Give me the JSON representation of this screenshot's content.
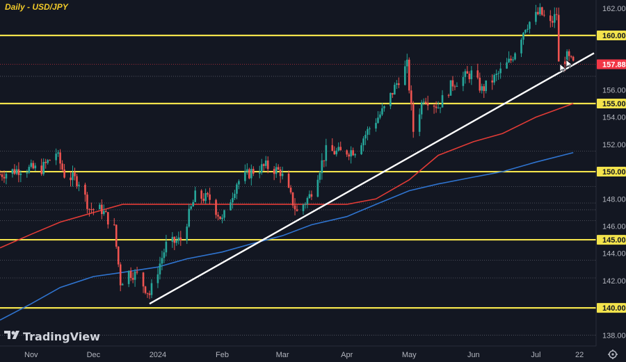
{
  "title": "Daily - USD/JPY",
  "brand": {
    "name": "TradingView",
    "logo_icon": "tradingview-logo-icon"
  },
  "settings_icon": "gear-icon",
  "cursor_icon": "arrow-cursor-icon",
  "colors": {
    "background": "#131722",
    "up": "#26a69a",
    "down": "#ef5350",
    "level": "#f3e34c",
    "ma_fast": "#e23b36",
    "ma_slow": "#2f74d0",
    "trendline": "#ffffff",
    "dotted": "#787b86",
    "current_price_badge": "#f23645"
  },
  "chart_data": {
    "type": "candlestick",
    "title": "Daily - USD/JPY",
    "x_labels": [
      "Nov",
      "Dec",
      "2024",
      "Feb",
      "Mar",
      "Apr",
      "May",
      "Jun",
      "Jul",
      "22"
    ],
    "x_label_dates": [
      "2023-11-01",
      "2023-12-01",
      "2024-01-01",
      "2024-02-01",
      "2024-03-01",
      "2024-04-01",
      "2024-05-01",
      "2024-06-01",
      "2024-07-01",
      "2024-07-22"
    ],
    "xlim": [
      "2023-10-17",
      "2024-07-30"
    ],
    "ylim": [
      137.2,
      162.6
    ],
    "y_ticks": [
      "138.000",
      "142.000",
      "144.000",
      "146.000",
      "148.000",
      "152.000",
      "154.000",
      "156.000",
      "162.000"
    ],
    "y_tick_values": [
      138,
      142,
      144,
      146,
      148,
      152,
      154,
      156,
      162
    ],
    "levels": [
      {
        "label": "160.000",
        "value": 160
      },
      {
        "label": "155.000",
        "value": 155
      },
      {
        "label": "150.000",
        "value": 150
      },
      {
        "label": "145.000",
        "value": 145
      },
      {
        "label": "140.000",
        "value": 140
      }
    ],
    "current_price": {
      "label": "157.881",
      "value": 157.881
    },
    "dotted_levels": [
      157.0,
      151.5,
      148.9,
      147.7,
      147.2,
      146.4,
      143.5,
      142.2,
      138.0
    ],
    "trendline": {
      "start": [
        "2023-12-28",
        140.3
      ],
      "end": [
        "2024-07-29",
        158.7
      ]
    },
    "series": [
      {
        "id": "sma-fast",
        "points": [
          [
            "2023-10-17",
            144.4
          ],
          [
            "2023-11-01",
            145.4
          ],
          [
            "2023-11-15",
            146.3
          ],
          [
            "2023-12-01",
            147.0
          ],
          [
            "2023-12-15",
            147.6
          ],
          [
            "2024-01-01",
            147.6
          ],
          [
            "2024-01-15",
            147.6
          ],
          [
            "2024-02-01",
            147.6
          ],
          [
            "2024-02-15",
            147.6
          ],
          [
            "2024-03-01",
            147.6
          ],
          [
            "2024-03-15",
            147.6
          ],
          [
            "2024-04-01",
            147.6
          ],
          [
            "2024-04-15",
            148.0
          ],
          [
            "2024-05-01",
            149.4
          ],
          [
            "2024-05-15",
            151.2
          ],
          [
            "2024-06-01",
            152.2
          ],
          [
            "2024-06-15",
            152.8
          ],
          [
            "2024-07-01",
            154.0
          ],
          [
            "2024-07-19",
            155.0
          ]
        ]
      },
      {
        "id": "sma-slow",
        "points": [
          [
            "2023-10-17",
            139.1
          ],
          [
            "2023-11-01",
            140.3
          ],
          [
            "2023-11-15",
            141.5
          ],
          [
            "2023-12-01",
            142.3
          ],
          [
            "2023-12-15",
            142.6
          ],
          [
            "2024-01-01",
            143.0
          ],
          [
            "2024-01-15",
            143.6
          ],
          [
            "2024-02-01",
            144.1
          ],
          [
            "2024-02-15",
            144.7
          ],
          [
            "2024-03-01",
            145.3
          ],
          [
            "2024-03-15",
            146.1
          ],
          [
            "2024-04-01",
            146.7
          ],
          [
            "2024-04-15",
            147.6
          ],
          [
            "2024-05-01",
            148.6
          ],
          [
            "2024-05-15",
            149.1
          ],
          [
            "2024-06-01",
            149.6
          ],
          [
            "2024-06-15",
            150.0
          ],
          [
            "2024-07-01",
            150.7
          ],
          [
            "2024-07-19",
            151.4
          ]
        ]
      }
    ],
    "candles_anchor": [
      [
        "2023-10-17",
        149.8
      ],
      [
        "2023-10-27",
        150.2
      ],
      [
        "2023-11-06",
        150.2
      ],
      [
        "2023-11-13",
        151.4
      ],
      [
        "2023-11-17",
        149.8
      ],
      [
        "2023-11-24",
        149.3
      ],
      [
        "2023-11-29",
        147.3
      ],
      [
        "2023-12-05",
        147.2
      ],
      [
        "2023-12-11",
        145.8
      ],
      [
        "2023-12-14",
        141.9
      ],
      [
        "2023-12-18",
        142.6
      ],
      [
        "2023-12-22",
        142.4
      ],
      [
        "2023-12-28",
        141.0
      ],
      [
        "2024-01-05",
        144.6
      ],
      [
        "2024-01-12",
        145.0
      ],
      [
        "2024-01-19",
        148.2
      ],
      [
        "2024-01-26",
        148.0
      ],
      [
        "2024-02-01",
        146.4
      ],
      [
        "2024-02-08",
        149.2
      ],
      [
        "2024-02-15",
        150.0
      ],
      [
        "2024-02-22",
        150.4
      ],
      [
        "2024-02-29",
        150.0
      ],
      [
        "2024-03-08",
        147.0
      ],
      [
        "2024-03-14",
        148.2
      ],
      [
        "2024-03-22",
        151.5
      ],
      [
        "2024-03-29",
        151.4
      ],
      [
        "2024-04-05",
        151.6
      ],
      [
        "2024-04-12",
        153.2
      ],
      [
        "2024-04-19",
        154.6
      ],
      [
        "2024-04-26",
        156.8
      ],
      [
        "2024-04-30",
        157.8
      ],
      [
        "2024-05-03",
        153.0
      ],
      [
        "2024-05-08",
        155.5
      ],
      [
        "2024-05-15",
        154.8
      ],
      [
        "2024-05-22",
        156.5
      ],
      [
        "2024-05-31",
        157.2
      ],
      [
        "2024-06-05",
        156.0
      ],
      [
        "2024-06-12",
        157.0
      ],
      [
        "2024-06-19",
        158.2
      ],
      [
        "2024-06-26",
        160.7
      ],
      [
        "2024-07-03",
        161.7
      ],
      [
        "2024-07-08",
        160.8
      ],
      [
        "2024-07-11",
        161.6
      ],
      [
        "2024-07-12",
        157.9
      ],
      [
        "2024-07-16",
        158.4
      ],
      [
        "2024-07-19",
        157.88
      ]
    ]
  }
}
